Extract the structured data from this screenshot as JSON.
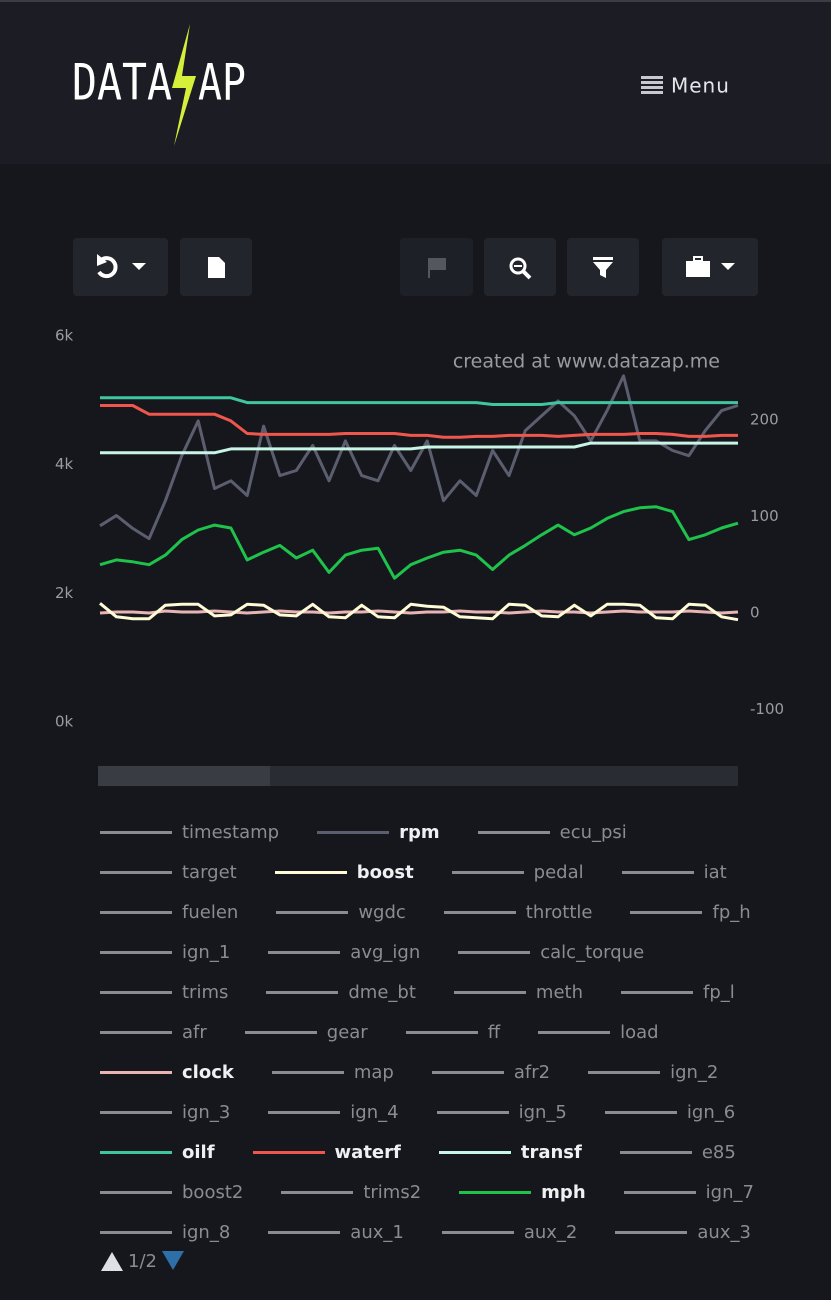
{
  "header": {
    "logo_left": "DATA",
    "logo_right": "AP",
    "menu": "Menu"
  },
  "chart_data": {
    "type": "line",
    "watermark": "created at www.datazap.me",
    "ylim": [
      0,
      6000
    ],
    "yticks": [
      {
        "value": 0,
        "label": "0k"
      },
      {
        "value": 2000,
        "label": "2k"
      },
      {
        "value": 4000,
        "label": "4k"
      },
      {
        "value": 6000,
        "label": "6k"
      }
    ],
    "y2lim": [
      -113,
      287
    ],
    "y2ticks": [
      -100,
      0,
      100,
      200
    ],
    "series": [
      {
        "name": "timestamp",
        "color": "#8a8c92"
      },
      {
        "name": "rpm",
        "color": "#5b5e6e",
        "axis": "y",
        "values": [
          3050,
          3210,
          3010,
          2850,
          3440,
          4140,
          4680,
          3630,
          3750,
          3520,
          4600,
          3830,
          3910,
          4300,
          3750,
          4370,
          3830,
          3750,
          4300,
          3910,
          4370,
          3440,
          3750,
          3520,
          4220,
          3830,
          4530,
          4760,
          4990,
          4760,
          4370,
          4840,
          5380,
          4370,
          4370,
          4220,
          4140,
          4530,
          4840,
          4920
        ]
      },
      {
        "name": "ecu_psi",
        "color": "#8a8c92"
      },
      {
        "name": "target",
        "color": "#8a8c92"
      },
      {
        "name": "boost",
        "color": "#fffbd6",
        "axis": "y2",
        "values": [
          10,
          -4,
          -6,
          -6,
          8,
          9,
          9,
          -3,
          -2,
          9,
          8,
          -2,
          -3,
          9,
          -4,
          -5,
          8,
          -4,
          -5,
          9,
          7,
          6,
          -4,
          -5,
          -6,
          9,
          8,
          -3,
          -4,
          8,
          -3,
          9,
          9,
          8,
          -5,
          -6,
          9,
          8,
          -4,
          -7
        ]
      },
      {
        "name": "pedal",
        "color": "#8a8c92"
      },
      {
        "name": "iat",
        "color": "#8a8c92"
      },
      {
        "name": "fuelen",
        "color": "#8a8c92"
      },
      {
        "name": "wgdc",
        "color": "#8a8c92"
      },
      {
        "name": "throttle",
        "color": "#8a8c92"
      },
      {
        "name": "fp_h",
        "color": "#8a8c92"
      },
      {
        "name": "ign_1",
        "color": "#8a8c92"
      },
      {
        "name": "avg_ign",
        "color": "#8a8c92"
      },
      {
        "name": "calc_torque",
        "color": "#8a8c92"
      },
      {
        "name": "trims",
        "color": "#8a8c92"
      },
      {
        "name": "dme_bt",
        "color": "#8a8c92"
      },
      {
        "name": "meth",
        "color": "#8a8c92"
      },
      {
        "name": "fp_l",
        "color": "#8a8c92"
      },
      {
        "name": "afr",
        "color": "#8a8c92"
      },
      {
        "name": "gear",
        "color": "#8a8c92"
      },
      {
        "name": "ff",
        "color": "#8a8c92"
      },
      {
        "name": "load",
        "color": "#8a8c92"
      },
      {
        "name": "clock",
        "color": "#e8b4b4",
        "axis": "y2",
        "values": [
          0,
          1,
          1,
          0,
          2,
          1,
          1,
          2,
          1,
          0,
          1,
          2,
          1,
          1,
          0,
          1,
          1,
          2,
          1,
          0,
          1,
          1,
          2,
          1,
          1,
          0,
          1,
          2,
          1,
          1,
          0,
          1,
          2,
          1,
          1,
          1,
          2,
          1,
          0,
          1
        ]
      },
      {
        "name": "map",
        "color": "#8a8c92"
      },
      {
        "name": "afr2",
        "color": "#8a8c92"
      },
      {
        "name": "ign_2",
        "color": "#8a8c92"
      },
      {
        "name": "ign_3",
        "color": "#8a8c92"
      },
      {
        "name": "ign_4",
        "color": "#8a8c92"
      },
      {
        "name": "ign_5",
        "color": "#8a8c92"
      },
      {
        "name": "ign_6",
        "color": "#8a8c92"
      },
      {
        "name": "oilf",
        "color": "#3fc6a0",
        "axis": "y2",
        "values": [
          223,
          223,
          223,
          223,
          223,
          223,
          223,
          223,
          223,
          218,
          218,
          218,
          218,
          218,
          218,
          218,
          218,
          218,
          218,
          218,
          218,
          218,
          218,
          218,
          216,
          216,
          216,
          216,
          218,
          218,
          218,
          218,
          218,
          218,
          218,
          218,
          218,
          218,
          218,
          218
        ]
      },
      {
        "name": "waterf",
        "color": "#f0574c",
        "axis": "y2",
        "values": [
          215,
          215,
          215,
          206,
          206,
          206,
          206,
          206,
          199,
          186,
          185,
          185,
          185,
          185,
          185,
          186,
          186,
          186,
          186,
          184,
          184,
          182,
          182,
          183,
          183,
          184,
          184,
          184,
          183,
          184,
          185,
          185,
          185,
          186,
          186,
          185,
          183,
          183,
          184,
          184
        ]
      },
      {
        "name": "transf",
        "color": "#c8f5e6",
        "axis": "y2",
        "values": [
          166,
          166,
          166,
          166,
          166,
          166,
          166,
          166,
          170,
          170,
          170,
          170,
          170,
          170,
          170,
          170,
          170,
          170,
          170,
          170,
          172,
          172,
          172,
          172,
          172,
          172,
          172,
          172,
          172,
          172,
          176,
          176,
          176,
          176,
          176,
          176,
          176,
          176,
          176,
          176
        ]
      },
      {
        "name": "e85",
        "color": "#8a8c92"
      },
      {
        "name": "boost2",
        "color": "#8a8c92"
      },
      {
        "name": "trims2",
        "color": "#8a8c92"
      },
      {
        "name": "mph",
        "color": "#1fc24a",
        "axis": "y2",
        "values": [
          50,
          55,
          53,
          50,
          60,
          76,
          86,
          91,
          88,
          55,
          63,
          70,
          57,
          65,
          42,
          60,
          65,
          67,
          36,
          50,
          57,
          63,
          65,
          60,
          45,
          60,
          70,
          81,
          91,
          81,
          88,
          98,
          105,
          109,
          110,
          105,
          76,
          81,
          88,
          93
        ]
      },
      {
        "name": "ign_7",
        "color": "#8a8c92"
      },
      {
        "name": "ign_8",
        "color": "#8a8c92"
      },
      {
        "name": "aux_1",
        "color": "#8a8c92"
      },
      {
        "name": "aux_2",
        "color": "#8a8c92"
      },
      {
        "name": "aux_3",
        "color": "#8a8c92"
      }
    ]
  },
  "pagination": "1/2"
}
